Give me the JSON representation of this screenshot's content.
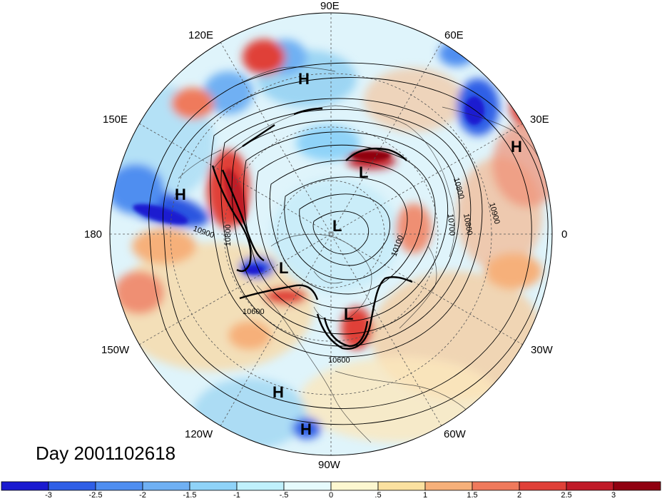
{
  "title_label": "Day 2001102618",
  "longitude_labels": {
    "lon_90e": "90E",
    "lon_120e": "120E",
    "lon_60e": "60E",
    "lon_150e": "150E",
    "lon_30e": "30E",
    "lon_180": "180",
    "lon_0": "0",
    "lon_150w": "150W",
    "lon_30w": "30W",
    "lon_120w": "120W",
    "lon_60w": "60W",
    "lon_90w": "90W"
  },
  "pressure_centers": [
    {
      "type": "H",
      "name": "high-asia-north"
    },
    {
      "type": "H",
      "name": "high-europe"
    },
    {
      "type": "H",
      "name": "high-pacific"
    },
    {
      "type": "H",
      "name": "high-mexico"
    },
    {
      "type": "H",
      "name": "high-pacific-south"
    },
    {
      "type": "L",
      "name": "low-siberia"
    },
    {
      "type": "L",
      "name": "low-pole"
    },
    {
      "type": "L",
      "name": "low-alaska"
    },
    {
      "type": "L",
      "name": "low-hudson"
    }
  ],
  "contour_labels": [
    "10900",
    "10800",
    "10600",
    "10800",
    "10900",
    "10800",
    "10700",
    "10100",
    "10600"
  ],
  "colorbar": {
    "ticks": [
      "-3",
      "-2.5",
      "-2",
      "-1.5",
      "-1",
      "-.5",
      "0",
      ".5",
      "1",
      "1.5",
      "2",
      "2.5",
      "3"
    ],
    "colors": [
      "#1a1ad0",
      "#2f5fe6",
      "#4f8ef0",
      "#6fb0f3",
      "#8fd3f8",
      "#bff0fc",
      "#e6fbfd",
      "#fdf7d0",
      "#fbe1a0",
      "#f6b07a",
      "#ef7a5c",
      "#e04038",
      "#c01a28",
      "#900010"
    ]
  },
  "colors": {
    "accent_negative": "#1a1ad0",
    "accent_positive": "#900010",
    "contour": "#000000"
  }
}
